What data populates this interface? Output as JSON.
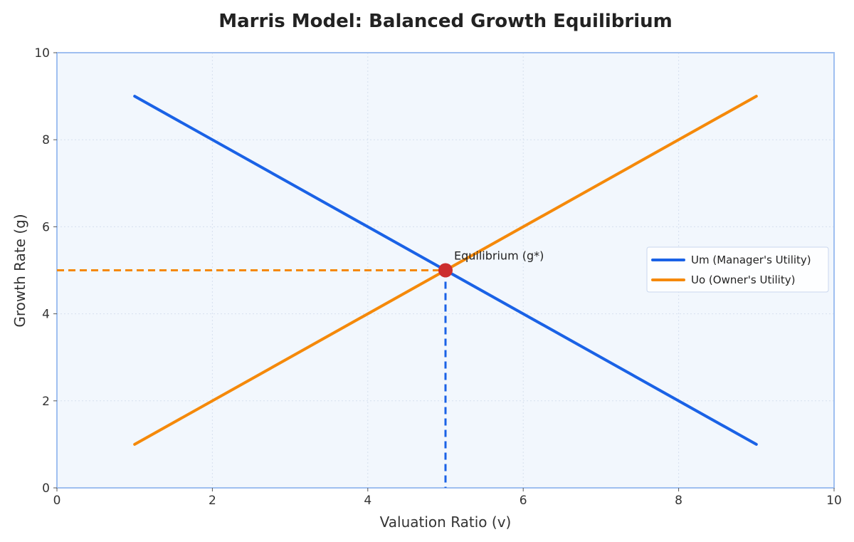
{
  "chart_data": {
    "type": "line",
    "title": "Marris Model: Balanced Growth Equilibrium",
    "xlabel": "Valuation Ratio (v)",
    "ylabel": "Growth Rate (g)",
    "xlim": [
      0,
      10
    ],
    "ylim": [
      0,
      10
    ],
    "xticks": [
      "0",
      "2",
      "4",
      "6",
      "8",
      "10"
    ],
    "yticks": [
      "0",
      "2",
      "4",
      "6",
      "8",
      "10"
    ],
    "grid": true,
    "legend_position": "center-right",
    "series": [
      {
        "name": "Um (Manager's Utility)",
        "color": "#1a62e6",
        "x": [
          1,
          9
        ],
        "y": [
          9,
          1
        ]
      },
      {
        "name": "Uo (Owner's Utility)",
        "color": "#f5890a",
        "x": [
          1,
          9
        ],
        "y": [
          1,
          9
        ]
      }
    ],
    "equilibrium": {
      "x": 5,
      "y": 5,
      "label": "Equilibrium (g*)",
      "color": "#cc2e2e"
    },
    "guides": {
      "horizontal": {
        "y": 5,
        "color": "#f5890a"
      },
      "vertical": {
        "x": 5,
        "color": "#1a62e6"
      }
    },
    "plot_background": "#f2f7fd",
    "plot_border": "#9fbff0"
  }
}
